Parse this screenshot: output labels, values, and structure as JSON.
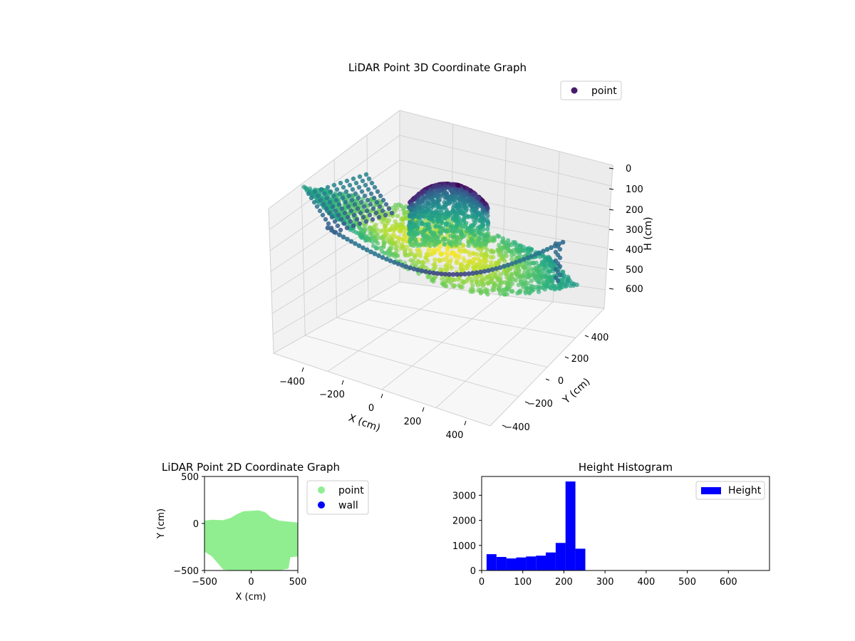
{
  "chart_data": [
    {
      "type": "scatter",
      "title": "LiDAR Point 3D Coordinate Graph",
      "xlabel": "X (cm)",
      "ylabel": "Y (cm)",
      "zlabel": "H (cm)",
      "xlim": [
        -500,
        500
      ],
      "ylim": [
        -500,
        500
      ],
      "zlim": [
        690,
        0
      ],
      "x_ticks": [
        "−400",
        "−200",
        "0",
        "200",
        "400"
      ],
      "y_ticks": [
        "−400",
        "−200",
        "0",
        "200",
        "400"
      ],
      "z_ticks": [
        "0",
        "100",
        "200",
        "300",
        "400",
        "500",
        "600"
      ],
      "legend": {
        "position": "top-right",
        "entries": [
          {
            "label": "point",
            "color": "#481a6c"
          }
        ]
      },
      "colormap": "viridis",
      "grid": true,
      "note_colors": {
        "dome_top": "#440154",
        "mid": "#21918c",
        "low": "#fde725"
      }
    },
    {
      "type": "scatter",
      "title": "LiDAR Point 2D Coordinate Graph",
      "xlabel": "X (cm)",
      "ylabel": "Y (cm)",
      "xlim": [
        -500,
        500
      ],
      "ylim": [
        -500,
        500
      ],
      "x_ticks": [
        "−500",
        "0",
        "500"
      ],
      "y_ticks": [
        "500",
        "0",
        "−500"
      ],
      "legend": {
        "position": "outside-right",
        "entries": [
          {
            "label": "point",
            "color": "#90ee90"
          },
          {
            "label": "wall",
            "color": "#0000ff"
          }
        ]
      },
      "region_outline": [
        [
          -500,
          30
        ],
        [
          -420,
          40
        ],
        [
          -300,
          35
        ],
        [
          -220,
          60
        ],
        [
          -150,
          100
        ],
        [
          -80,
          130
        ],
        [
          0,
          135
        ],
        [
          80,
          140
        ],
        [
          150,
          120
        ],
        [
          220,
          60
        ],
        [
          300,
          30
        ],
        [
          400,
          20
        ],
        [
          500,
          10
        ],
        [
          500,
          -350
        ],
        [
          420,
          -360
        ],
        [
          400,
          -480
        ],
        [
          300,
          -500
        ],
        [
          0,
          -500
        ],
        [
          -200,
          -500
        ],
        [
          -300,
          -490
        ],
        [
          -420,
          -350
        ],
        [
          -500,
          -300
        ]
      ]
    },
    {
      "type": "bar",
      "title": "Height Histogram",
      "xlabel": "",
      "ylabel": "",
      "xlim": [
        0,
        700
      ],
      "ylim": [
        0,
        3750
      ],
      "x_ticks": [
        "0",
        "100",
        "200",
        "300",
        "400",
        "500",
        "600"
      ],
      "y_ticks": [
        "0",
        "1000",
        "2000",
        "3000"
      ],
      "bin_edges": [
        12,
        36,
        60,
        84,
        108,
        132,
        156,
        180,
        204,
        228,
        252
      ],
      "values": [
        650,
        540,
        480,
        520,
        560,
        590,
        720,
        1100,
        3550,
        870
      ],
      "color": "#0000ff",
      "legend": {
        "position": "top-right",
        "entries": [
          {
            "label": "Height",
            "color": "#0000ff"
          }
        ]
      }
    }
  ]
}
